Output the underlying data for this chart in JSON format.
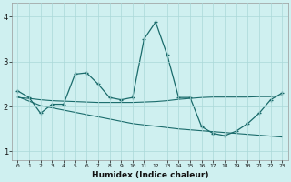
{
  "xlabel": "Humidex (Indice chaleur)",
  "background_color": "#cff0f0",
  "grid_color": "#aad8d8",
  "line_color": "#1a6b6b",
  "xlim": [
    -0.5,
    23.5
  ],
  "ylim": [
    0.8,
    4.3
  ],
  "xticks": [
    0,
    1,
    2,
    3,
    4,
    5,
    6,
    7,
    8,
    9,
    10,
    11,
    12,
    13,
    14,
    15,
    16,
    17,
    18,
    19,
    20,
    21,
    22,
    23
  ],
  "yticks": [
    1,
    2,
    3,
    4
  ],
  "curve1_x": [
    0,
    1,
    2,
    3,
    4,
    5,
    6,
    7,
    8,
    9,
    10,
    11,
    12,
    13,
    14,
    15,
    16,
    17,
    18,
    19,
    20,
    21,
    22,
    23
  ],
  "curve1_y": [
    2.35,
    2.2,
    1.85,
    2.05,
    2.05,
    2.72,
    2.75,
    2.5,
    2.2,
    2.15,
    2.2,
    3.5,
    3.88,
    3.15,
    2.2,
    2.2,
    1.55,
    1.4,
    1.35,
    1.45,
    1.62,
    1.85,
    2.15,
    2.3
  ],
  "curve2_x": [
    0,
    1,
    2,
    3,
    4,
    5,
    6,
    7,
    8,
    9,
    10,
    11,
    12,
    13,
    14,
    15,
    16,
    17,
    18,
    19,
    20,
    21,
    22,
    23
  ],
  "curve2_y": [
    2.22,
    2.12,
    2.02,
    1.97,
    1.92,
    1.87,
    1.82,
    1.77,
    1.72,
    1.67,
    1.62,
    1.59,
    1.56,
    1.53,
    1.5,
    1.48,
    1.46,
    1.44,
    1.42,
    1.4,
    1.38,
    1.36,
    1.34,
    1.32
  ],
  "curve3_x": [
    0,
    1,
    2,
    3,
    4,
    5,
    6,
    7,
    8,
    9,
    10,
    11,
    12,
    13,
    14,
    15,
    16,
    17,
    18,
    19,
    20,
    21,
    22,
    23
  ],
  "curve3_y": [
    2.2,
    2.18,
    2.15,
    2.13,
    2.12,
    2.11,
    2.1,
    2.09,
    2.09,
    2.09,
    2.09,
    2.1,
    2.11,
    2.13,
    2.16,
    2.18,
    2.2,
    2.21,
    2.21,
    2.21,
    2.21,
    2.22,
    2.22,
    2.24
  ]
}
